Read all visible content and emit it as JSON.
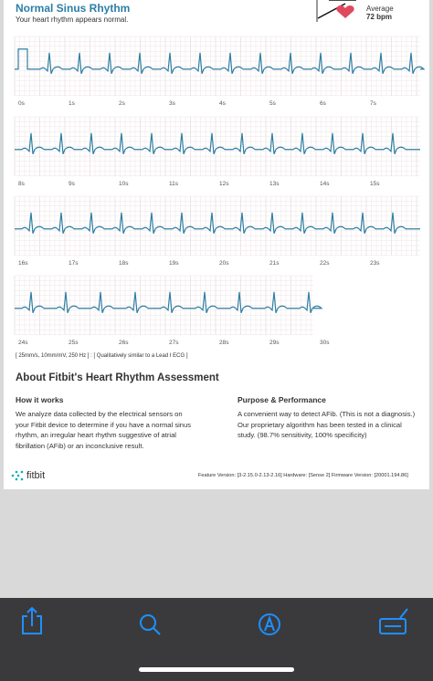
{
  "header": {
    "title": "Normal Sinus Rhythm",
    "subtitle": "Your heart rhythm appears normal.",
    "average_label": "Average",
    "average_value": "72 bpm"
  },
  "ecg": {
    "time_labels": [
      "0s",
      "1s",
      "2s",
      "3s",
      "4s",
      "5s",
      "6s",
      "7s",
      "8s",
      "9s",
      "10s",
      "11s",
      "12s",
      "13s",
      "14s",
      "15s",
      "16s",
      "17s",
      "18s",
      "19s",
      "20s",
      "21s",
      "22s",
      "23s",
      "24s",
      "25s",
      "26s",
      "27s",
      "28s",
      "29s",
      "30s"
    ],
    "note": "[ 25mm/s, 10mm/mV, 250 Hz ] : [ Qualitatively similar to a Lead I ECG ]"
  },
  "about": {
    "title": "About Fitbit's Heart Rhythm Assessment",
    "how": {
      "heading": "How it works",
      "lines": [
        "We analyze data collected by the electrical sensors on",
        "your Fitbit device to determine if you have a normal sinus",
        "rhythm, an irregular heart rhythm suggestive of atrial",
        "fibrillation (AFib) or an inconclusive result."
      ]
    },
    "purpose": {
      "heading": "Purpose & Performance",
      "lines": [
        "A convenient way to detect AFib. (This is not a diagnosis.)",
        "Our proprietary algorithm has been tested in a clinical",
        "study. (98.7% sensitivity, 100% specificity)"
      ]
    }
  },
  "footer": {
    "brand": "fitbit",
    "versions": "Feature Version: [3-2.15.0-2.13-2.16] Hardware: [Sense 2] Firmware Version: [20001.194.86]"
  }
}
